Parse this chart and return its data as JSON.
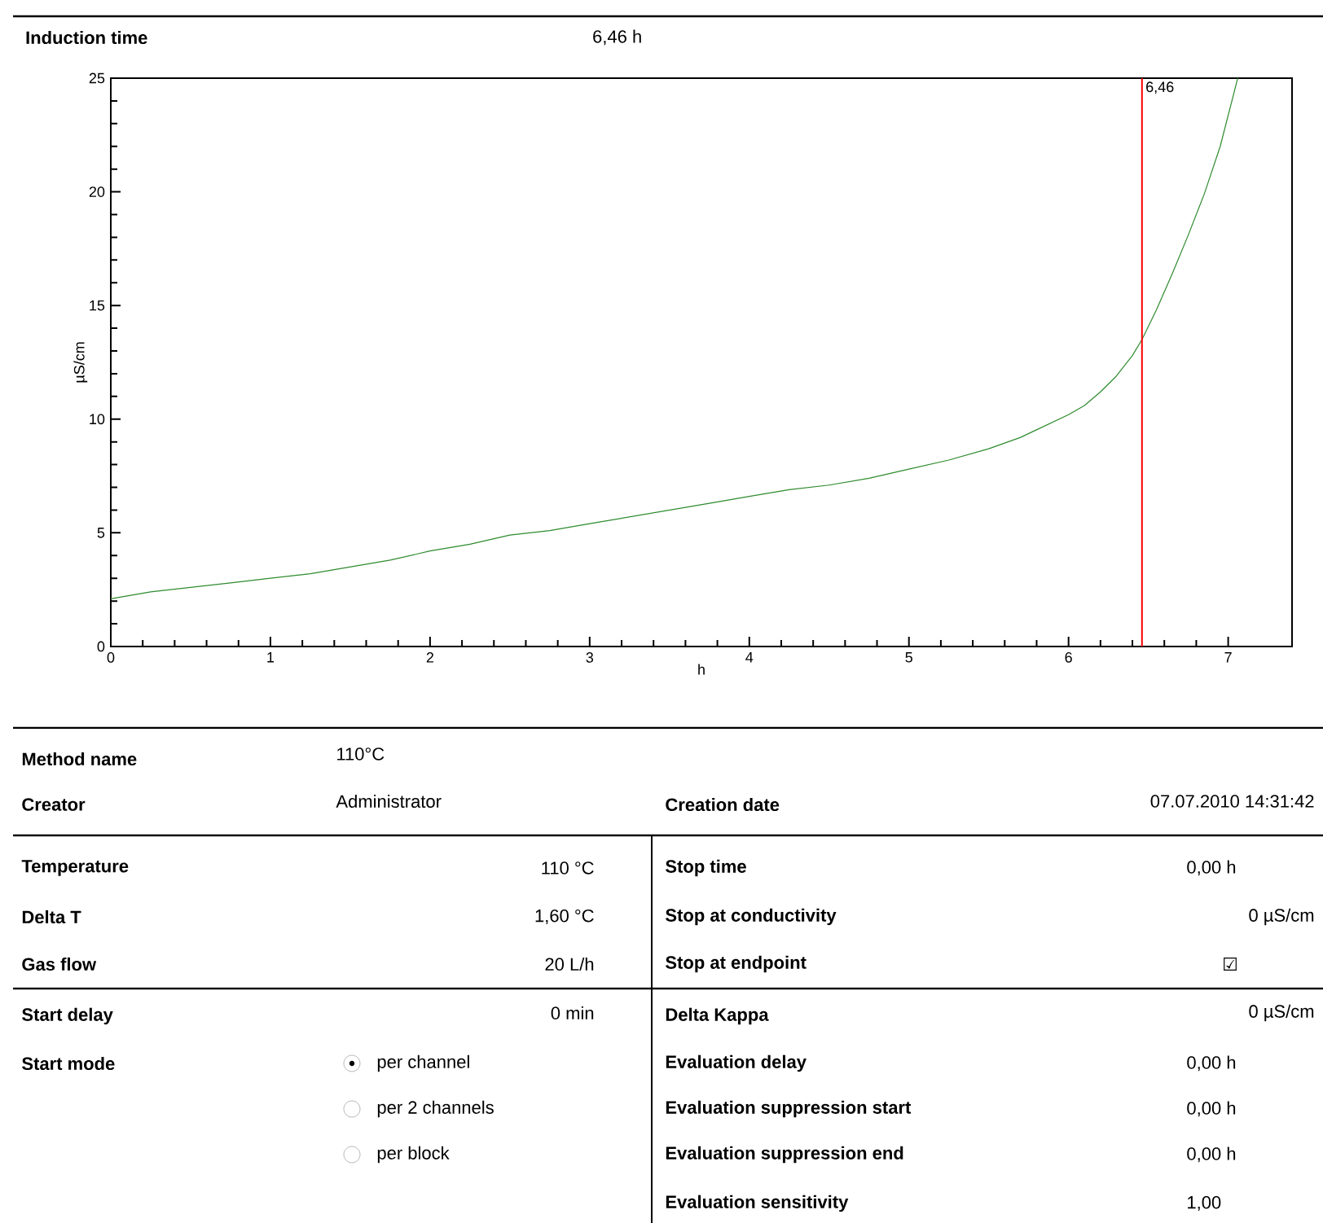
{
  "chart_data": {
    "type": "line",
    "title": "Induction time",
    "subtitle": "6,46 h",
    "xlabel": "h",
    "ylabel": "µS/cm",
    "xlim": [
      0,
      7.4
    ],
    "ylim": [
      0,
      25
    ],
    "xticks": [
      0,
      1,
      2,
      3,
      4,
      5,
      6,
      7
    ],
    "yticks": [
      0,
      5,
      10,
      15,
      20,
      25
    ],
    "series": [
      {
        "color": "#2e8b2e",
        "x": [
          0,
          0.25,
          0.5,
          0.75,
          1,
          1.25,
          1.5,
          1.75,
          2,
          2.25,
          2.5,
          2.75,
          3,
          3.25,
          3.5,
          3.75,
          4,
          4.25,
          4.5,
          4.75,
          5,
          5.25,
          5.5,
          5.7,
          5.85,
          6.0,
          6.1,
          6.2,
          6.3,
          6.4,
          6.46,
          6.55,
          6.65,
          6.75,
          6.85,
          6.95,
          7.06
        ],
        "values": [
          2.1,
          2.4,
          2.6,
          2.8,
          3.0,
          3.2,
          3.5,
          3.8,
          4.2,
          4.5,
          4.9,
          5.1,
          5.4,
          5.7,
          6.0,
          6.3,
          6.6,
          6.9,
          7.1,
          7.4,
          7.8,
          8.2,
          8.7,
          9.2,
          9.7,
          10.2,
          10.6,
          11.2,
          11.9,
          12.8,
          13.5,
          14.8,
          16.4,
          18.1,
          19.9,
          22.0,
          25.0
        ]
      }
    ],
    "ref_lines": [
      {
        "axis": "x",
        "value": 6.46,
        "label": "6,46",
        "color": "#ff0000"
      }
    ],
    "annotations": [
      "Method name",
      "110°C",
      "Creator",
      "Administrator",
      "Creation date",
      "07.07.2010 14:31:42",
      "Temperature",
      "110 °C",
      "Delta T",
      "1,60 °C",
      "Gas flow",
      "20 L/h",
      "Start delay",
      "0 min",
      "Start mode",
      "per channel",
      "per 2 channels",
      "per block",
      "Stop time",
      "0,00 h",
      "Stop at conductivity",
      "0 µS/cm",
      "Stop at endpoint",
      "☑",
      "Delta Kappa",
      "0 µS/cm",
      "Evaluation delay",
      "0,00 h",
      "Evaluation suppression start",
      "0,00 h",
      "Evaluation suppression end",
      "0,00 h",
      "Evaluation sensitivity",
      "1,00"
    ]
  }
}
